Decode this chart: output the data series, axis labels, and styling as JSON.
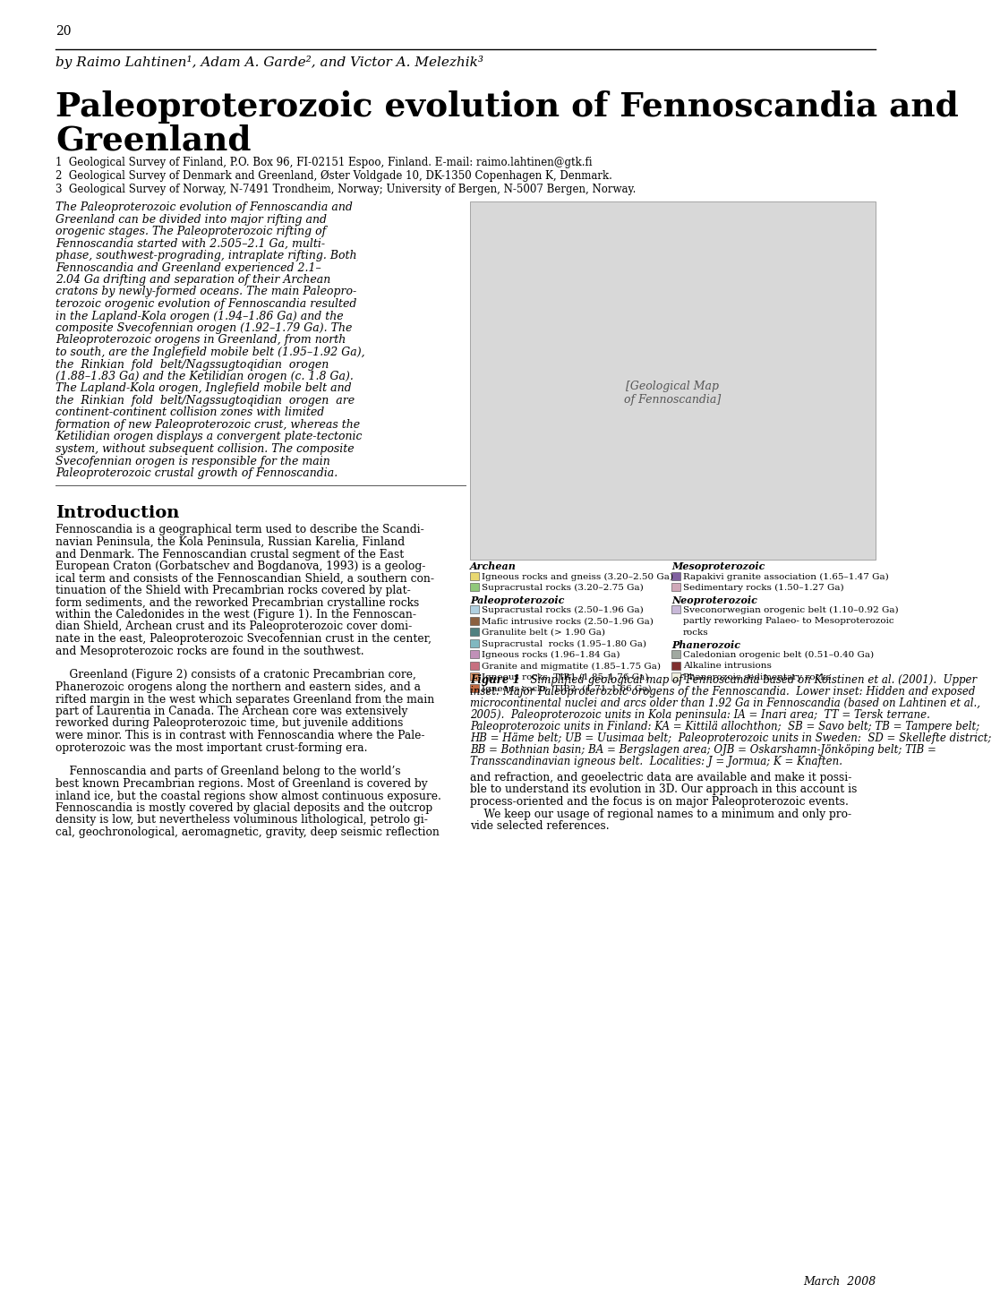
{
  "page_number": "20",
  "byline": "by Raimo Lahtinen¹, Adam A. Garde², and Victor A. Melezhik³",
  "title_line1": "Paleoproterozoic evolution of Fennoscandia and",
  "title_line2": "Greenland",
  "affiliations": [
    "1  Geological Survey of Finland, P.O. Box 96, FI-02151 Espoo, Finland. E-mail: raimo.lahtinen@gtk.fi",
    "2  Geological Survey of Denmark and Greenland, Øster Voldgade 10, DK-1350 Copenhagen K, Denmark.",
    "3  Geological Survey of Norway, N-7491 Trondheim, Norway; University of Bergen, N-5007 Bergen, Norway."
  ],
  "abstract_lines": [
    "The Paleoproterozoic evolution of Fennoscandia and",
    "Greenland can be divided into major rifting and",
    "orogenic stages. The Paleoproterozoic rifting of",
    "Fennoscandia started with 2.505–2.1 Ga, multi-",
    "phase, southwest-prograding, intraplate rifting. Both",
    "Fennoscandia and Greenland experienced 2.1–",
    "2.04 Ga drifting and separation of their Archean",
    "cratons by newly-formed oceans. The main Paleopro-",
    "terozoic orogenic evolution of Fennoscandia resulted",
    "in the Lapland-Kola orogen (1.94–1.86 Ga) and the",
    "composite Svecofennian orogen (1.92–1.79 Ga). The",
    "Paleoproterozoic orogens in Greenland, from north",
    "to south, are the Inglefield mobile belt (1.95–1.92 Ga),",
    "the  Rinkian  fold  belt/Nagssugtoqidian  orogen",
    "(1.88–1.83 Ga) and the Ketilidian orogen (c. 1.8 Ga).",
    "The Lapland-Kola orogen, Inglefield mobile belt and",
    "the  Rinkian  fold  belt/Nagssugtoqidian  orogen  are",
    "continent-continent collision zones with limited",
    "formation of new Paleoproterozoic crust, whereas the",
    "Ketilidian orogen displays a convergent plate-tectonic",
    "system, without subsequent collision. The composite",
    "Svecofennian orogen is responsible for the main",
    "Paleoproterozoic crustal growth of Fennoscandia."
  ],
  "intro_header": "Introduction",
  "intro_col1_lines": [
    "Fennoscandia is a geographical term used to describe the Scandi-",
    "navian Peninsula, the Kola Peninsula, Russian Karelia, Finland",
    "and Denmark. The Fennoscandian crustal segment of the East",
    "European Craton (Gorbatschev and Bogdanova, 1993) is a geolog-",
    "ical term and consists of the Fennoscandian Shield, a southern con-",
    "tinuation of the Shield with Precambrian rocks covered by plat-",
    "form sediments, and the reworked Precambrian crystalline rocks",
    "within the Caledonides in the west (Figure 1). In the Fennoscan-",
    "dian Shield, Archean crust and its Paleoproterozoic cover domi-",
    "nate in the east, Paleoproterozoic Svecofennian crust in the center,",
    "and Mesoproterozoic rocks are found in the southwest.",
    "",
    "    Greenland (Figure 2) consists of a cratonic Precambrian core,",
    "Phanerozoic orogens along the northern and eastern sides, and a",
    "rifted margin in the west which separates Greenland from the main",
    "part of Laurentia in Canada. The Archean core was extensively",
    "reworked during Paleoproterozoic time, but juvenile additions",
    "were minor. This is in contrast with Fennoscandia where the Pale-",
    "oproterozoic was the most important crust-forming era.",
    "",
    "    Fennoscandia and parts of Greenland belong to the world’s",
    "best known Precambrian regions. Most of Greenland is covered by",
    "inland ice, but the coastal regions show almost continuous exposure.",
    "Fennoscandia is mostly covered by glacial deposits and the outcrop",
    "density is low, but nevertheless voluminous lithological, petrolo gi-",
    "cal, geochronological, aeromagnetic, gravity, deep seismic reflection"
  ],
  "intro_col2_lines": [
    "and refraction, and geoelectric data are available and make it possi-",
    "ble to understand its evolution in 3D. Our approach in this account is",
    "process-oriented and the focus is on major Paleoproterozoic events.",
    "    We keep our usage of regional names to a minimum and only pro-",
    "vide selected references."
  ],
  "figure_caption_bold": "Figure 1",
  "figure_caption_italic": "  Simplified geological map of Fennoscandia based on Koistinen et al. (2001).  Upper inset: Major Paleoproterozoic orogens of the Fennoscandia.  Lower inset: Hidden and exposed microcontinental nuclei and arcs older than 1.92 Ga in Fennoscandia (based on Lahtinen et al., 2005).  Paleoproterozoic units in Kola peninsula: IA = Inari area;  TT = Tersk terrane. Paleoproterozoic units in Finland: KA = Kittilä allochthon;  SB = Savo belt; TB = Tampere belt;  HB = Häme belt; UB = Uusimaa belt;  Paleoproterozoic units in Sweden:  SD = Skellefte district;  BB = Bothnian basin; BA = Bergslagen area; OJB = Oskarshamn-Jönköping belt; TIB = Transscandinavian igneous belt.  Localities: J = Jormua; K = Knaften.",
  "date_footer": "March  2008",
  "legend_left": [
    {
      "header": "Archean"
    },
    {
      "color": "#e8d870",
      "label": "Igneous rocks and gneiss (3.20–2.50 Ga)"
    },
    {
      "color": "#90c87a",
      "label": "Supracrustal rocks (3.20–2.75 Ga)"
    },
    {
      "header": "Paleoproterozoic"
    },
    {
      "color": "#b0d0e0",
      "label": "Supracrustal rocks (2.50–1.96 Ga)"
    },
    {
      "color": "#8b6040",
      "label": "Mafic intrusive rocks (2.50–1.96 Ga)"
    },
    {
      "color": "#508080",
      "label": "Granulite belt (> 1.90 Ga)"
    },
    {
      "color": "#80b8c0",
      "label": "Supracrustal  rocks (1.95–1.80 Ga)"
    },
    {
      "color": "#c090b8",
      "label": "Igneous rocks (1.96–1.84 Ga)"
    },
    {
      "color": "#c87080",
      "label": "Granite and migmatite (1.85–1.75 Ga)"
    },
    {
      "color": "#e09868",
      "label": "Igneous rocks, TIB1 (1.85–1.76 Ga)"
    },
    {
      "color": "#c06840",
      "label": "Igneous rocks, TIB2  (1.71–1.66 Ga)"
    }
  ],
  "legend_right": [
    {
      "header": "Mesoproterozoic"
    },
    {
      "color": "#8060a0",
      "label": "Rapakivi granite association (1.65–1.47 Ga)"
    },
    {
      "color": "#d0a8b8",
      "label": "Sedimentary rocks (1.50–1.27 Ga)"
    },
    {
      "header": "Neoproterozoic"
    },
    {
      "color": "#c8b8d8",
      "label": "Sveconorwegian orogenic belt (1.10–0.92 Ga)"
    },
    {
      "color": null,
      "label": "partly reworking Palaeo- to Mesoproterozoic"
    },
    {
      "color": null,
      "label": "rocks"
    },
    {
      "header": "Phanerozoic"
    },
    {
      "color": "#a0a8a0",
      "label": "Caledonian orogenic belt (0.51–0.40 Ga)"
    },
    {
      "color": "#803030",
      "label": "Alkaline intrusions"
    },
    {
      "color": "#f0f0e0",
      "label": "Phanerozoic sedimentary rocks"
    }
  ],
  "bg": "#ffffff"
}
